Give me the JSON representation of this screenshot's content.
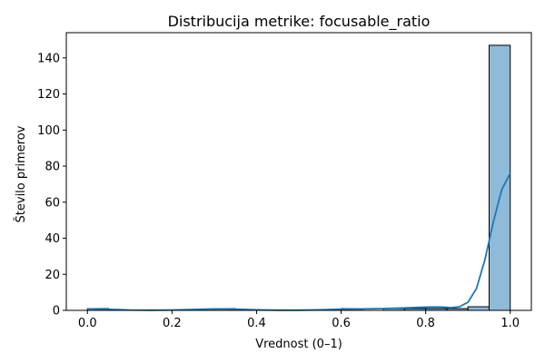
{
  "chart_data": {
    "type": "bar",
    "title": "Distribucija metrike: focusable_ratio",
    "xlabel": "Vrednost (0–1)",
    "ylabel": "Število primerov",
    "xlim": [
      -0.05,
      1.05
    ],
    "ylim": [
      0,
      154
    ],
    "x_ticks": [
      0.0,
      0.2,
      0.4,
      0.6,
      0.8,
      1.0
    ],
    "x_tick_labels": [
      "0.0",
      "0.2",
      "0.4",
      "0.6",
      "0.8",
      "1.0"
    ],
    "y_ticks": [
      0,
      20,
      40,
      60,
      80,
      100,
      120,
      140
    ],
    "y_tick_labels": [
      "0",
      "20",
      "40",
      "60",
      "80",
      "100",
      "120",
      "140"
    ],
    "bin_edges": [
      0.0,
      0.05,
      0.1,
      0.15,
      0.2,
      0.25,
      0.3,
      0.35,
      0.4,
      0.45,
      0.5,
      0.55,
      0.6,
      0.65,
      0.7,
      0.75,
      0.8,
      0.85,
      0.9,
      0.95,
      1.0
    ],
    "counts": [
      1,
      0,
      0,
      0,
      0,
      0,
      1,
      0,
      0,
      0,
      0,
      0,
      1,
      0,
      1,
      1,
      1,
      1,
      2,
      147
    ],
    "kde": {
      "x": [
        0.0,
        0.05,
        0.1,
        0.15,
        0.2,
        0.25,
        0.3,
        0.35,
        0.4,
        0.45,
        0.5,
        0.55,
        0.6,
        0.65,
        0.7,
        0.75,
        0.8,
        0.82,
        0.84,
        0.86,
        0.88,
        0.9,
        0.92,
        0.94,
        0.96,
        0.98,
        1.0
      ],
      "y": [
        0.8,
        0.6,
        0.2,
        0.1,
        0.2,
        0.5,
        0.8,
        0.7,
        0.3,
        0.1,
        0.1,
        0.3,
        0.7,
        0.8,
        1.0,
        1.4,
        1.8,
        1.9,
        1.8,
        1.5,
        2.0,
        4.5,
        12.0,
        28.0,
        49.0,
        67.0,
        76.0
      ]
    },
    "bar_color": "#8fbbd9",
    "bar_edge_color": "#000000",
    "kde_color": "#1f77b4",
    "grid": false,
    "legend": "none"
  }
}
